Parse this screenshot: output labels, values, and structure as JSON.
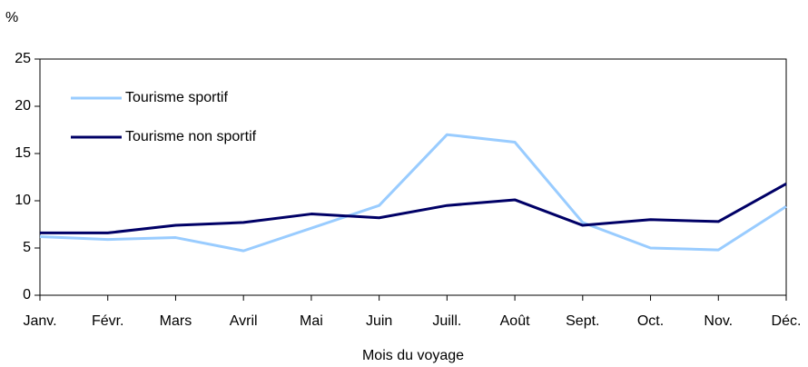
{
  "chart_data": {
    "type": "line",
    "y_unit": "%",
    "x_label": "Mois du voyage",
    "categories": [
      "Janv.",
      "Févr.",
      "Mars",
      "Avril",
      "Mai",
      "Juin",
      "Juill.",
      "Août",
      "Sept.",
      "Oct.",
      "Nov.",
      "Déc."
    ],
    "series": [
      {
        "name": "Tourisme sportif",
        "color": "#99ccff",
        "values": [
          6.2,
          5.9,
          6.1,
          4.7,
          7.1,
          9.5,
          17.0,
          16.2,
          7.7,
          5.0,
          4.8,
          9.4
        ]
      },
      {
        "name": "Tourisme non sportif",
        "color": "#000066",
        "values": [
          6.6,
          6.6,
          7.4,
          7.7,
          8.6,
          8.2,
          9.5,
          10.1,
          7.4,
          8.0,
          7.8,
          11.8
        ]
      }
    ],
    "ylim": [
      0,
      25
    ],
    "yticks": [
      0,
      5,
      10,
      15,
      20,
      25
    ],
    "grid": false,
    "legend": "upper left"
  }
}
